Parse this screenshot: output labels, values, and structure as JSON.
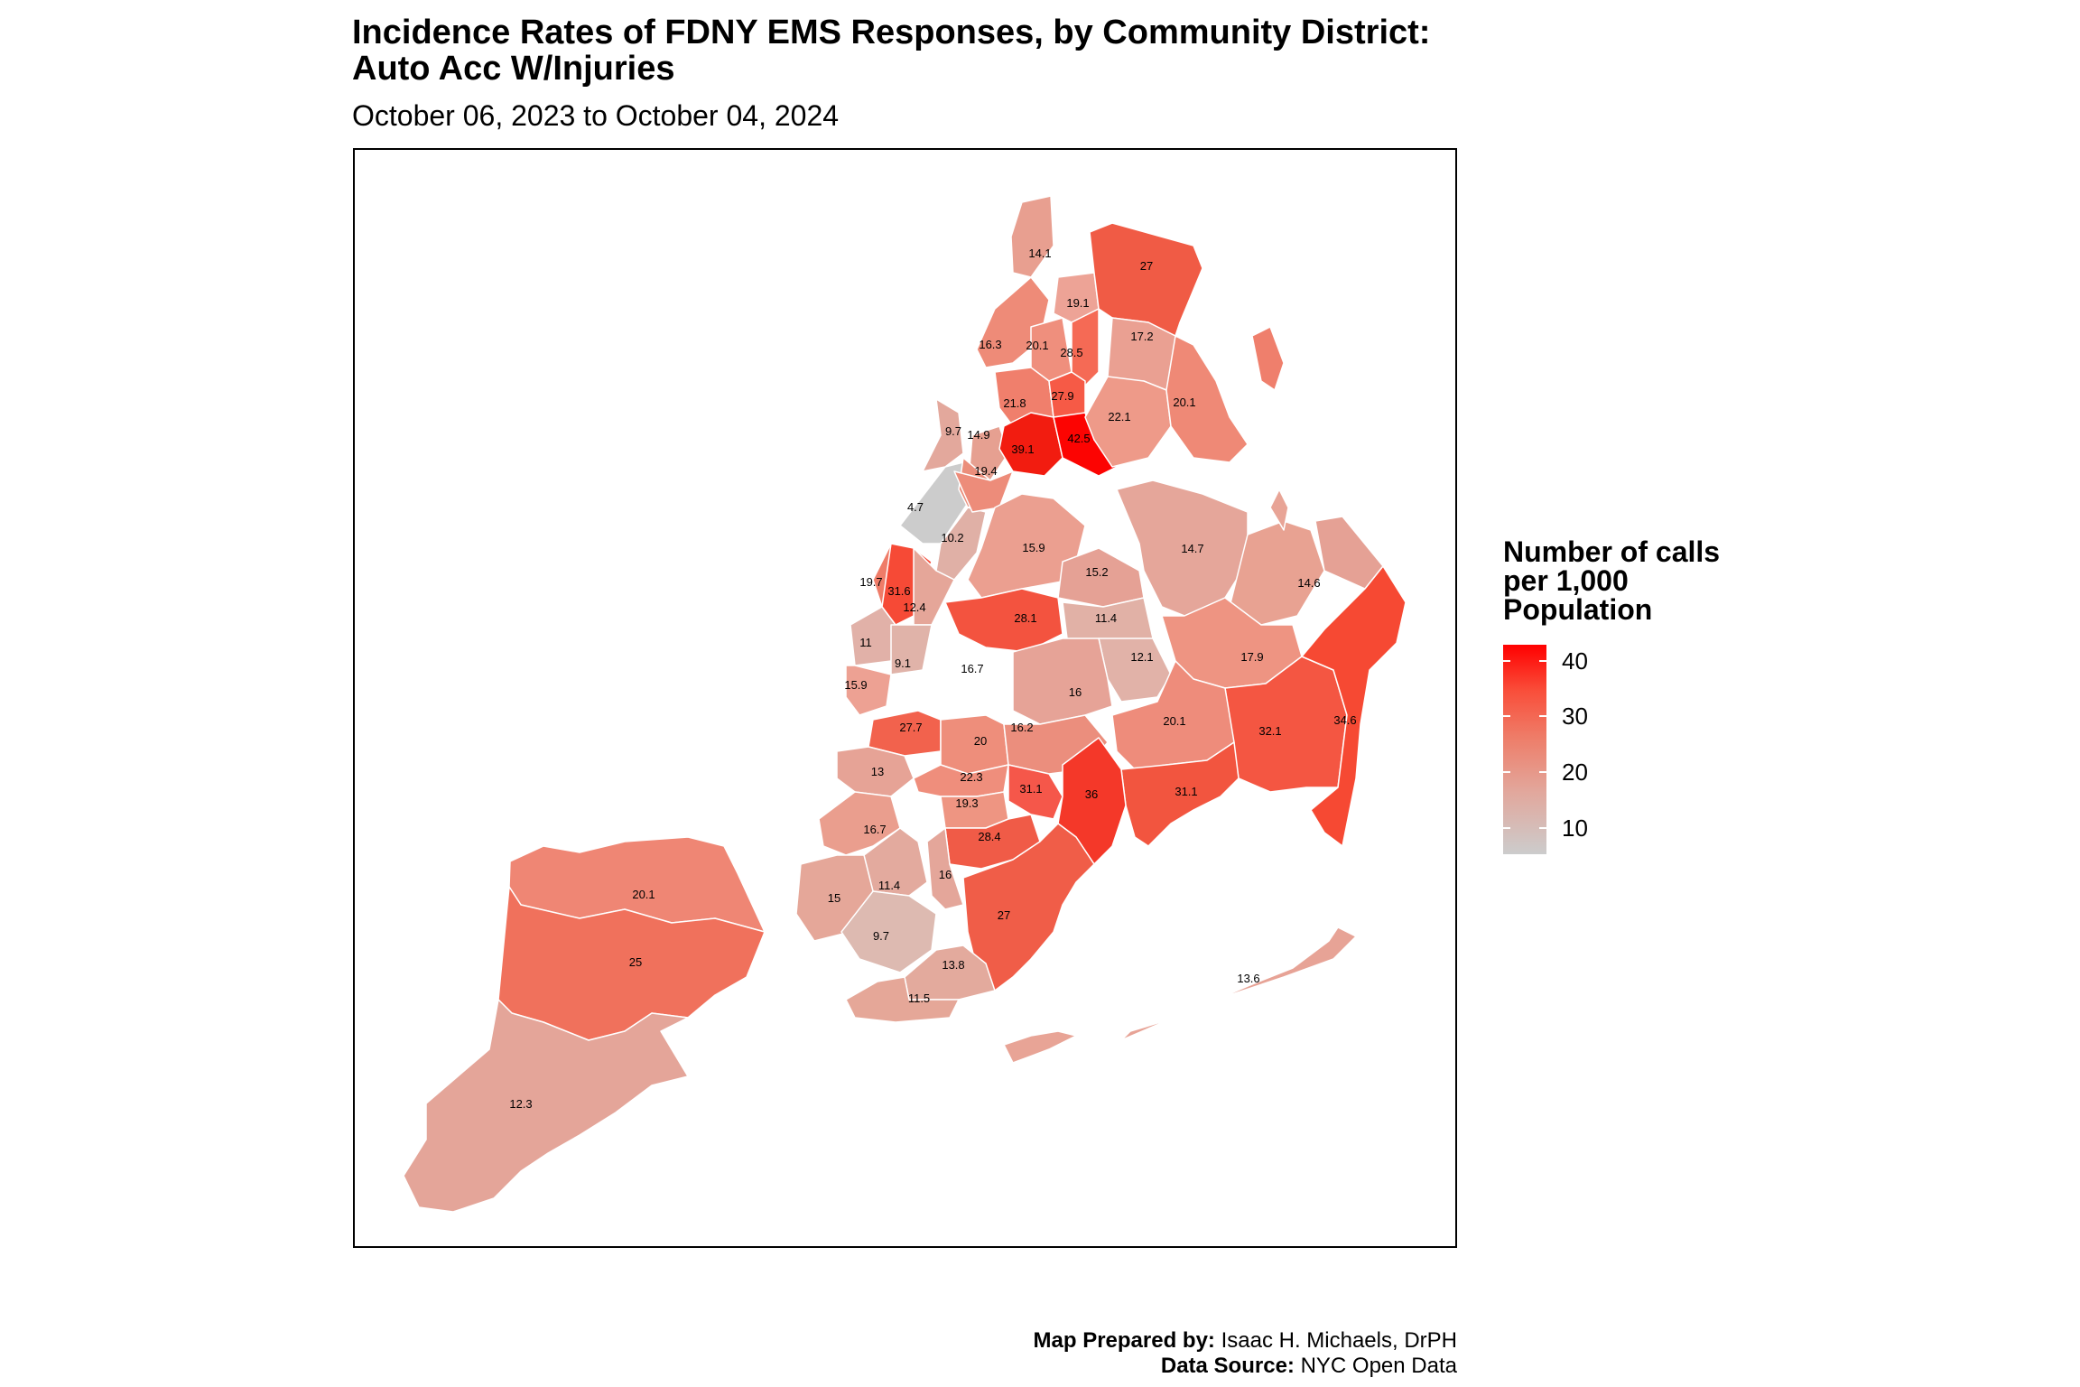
{
  "title": "Incidence Rates of FDNY EMS Responses, by Community District:\nAuto Acc W/Injuries",
  "subtitle": "October 06, 2023 to October 04, 2024",
  "legend": {
    "title": "Number of calls\nper 1,000\nPopulation",
    "ticks": [
      "40",
      "30",
      "20",
      "10"
    ],
    "colors": {
      "low": "#cccccc",
      "high": "#ff0000"
    }
  },
  "credits": {
    "prepared_label": "Map Prepared by:",
    "prepared_value": " Isaac H. Michaels, DrPH",
    "source_label": "Data Source:",
    "source_value": " NYC Open Data"
  },
  "district_values": [
    "14.1",
    "27",
    "19.1",
    "17.2",
    "16.3",
    "20.1",
    "28.5",
    "20.1",
    "21.8",
    "27.9",
    "22.1",
    "9.7",
    "14.9",
    "39.1",
    "42.5",
    "19.4",
    "4.7",
    "10.2",
    "15.9",
    "14.7",
    "15.2",
    "14.6",
    "19.7",
    "31.6",
    "12.4",
    "28.1",
    "11.4",
    "11",
    "9.1",
    "16.7",
    "12.1",
    "17.9",
    "15.9",
    "16",
    "32.1",
    "34.6",
    "27.7",
    "20",
    "16.2",
    "20.1",
    "13",
    "22.3",
    "31.1",
    "36",
    "31.1",
    "19.3",
    "16.7",
    "28.4",
    "16",
    "11.4",
    "15",
    "27",
    "9.7",
    "13.8",
    "11.5",
    "20.1",
    "25",
    "13.6",
    "12.3"
  ]
}
